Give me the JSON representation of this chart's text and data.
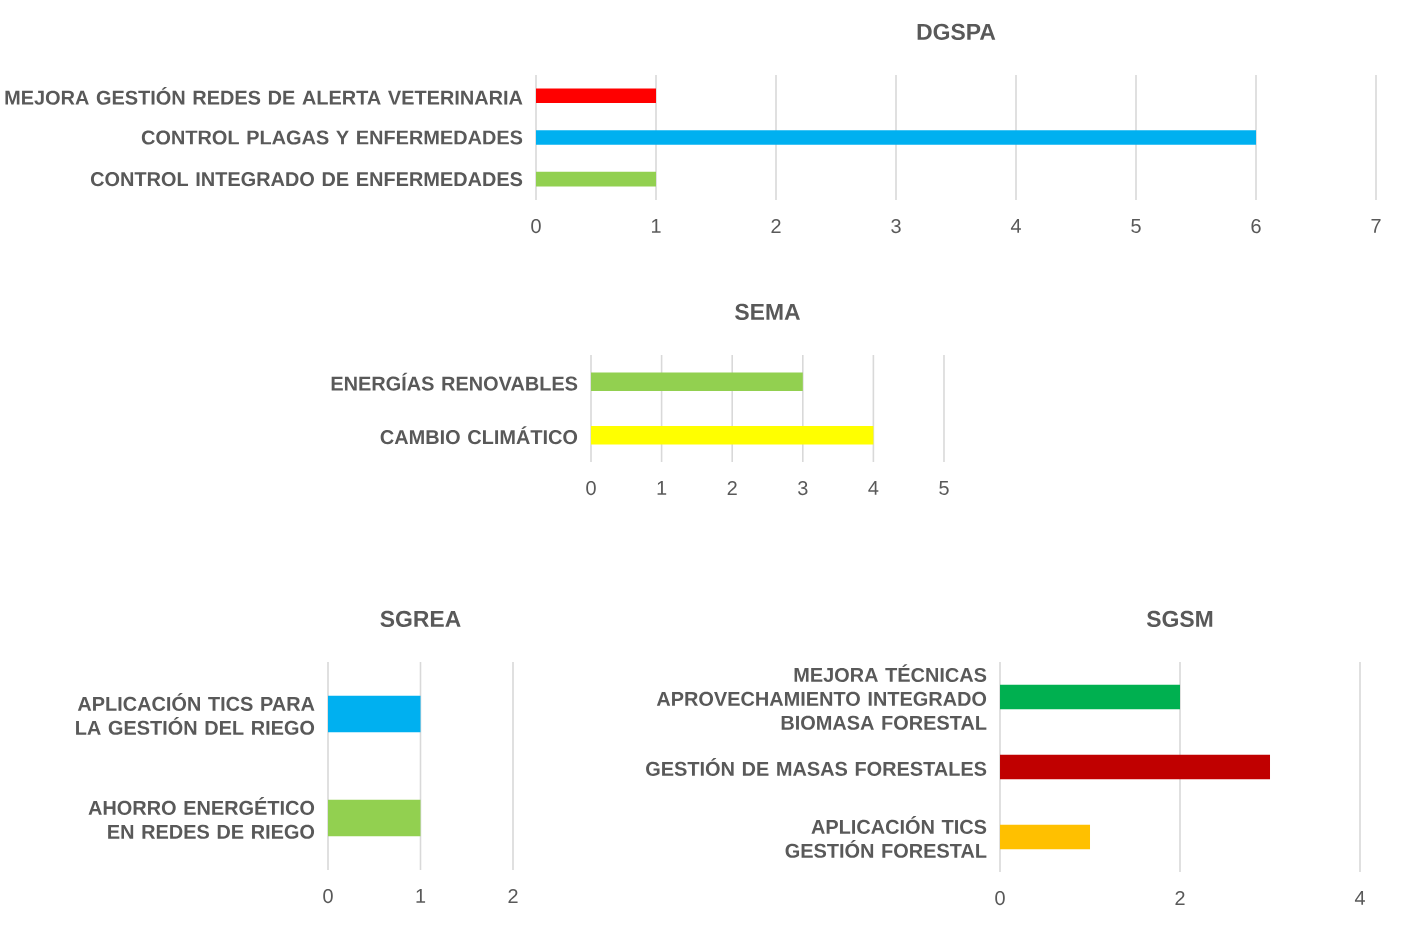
{
  "chart_data": [
    {
      "type": "bar",
      "orientation": "horizontal",
      "title": "DGSPA",
      "categories": [
        "MEJORA GESTIÓN REDES DE ALERTA VETERINARIA",
        "CONTROL PLAGAS Y ENFERMEDADES",
        "CONTROL INTEGRADO DE ENFERMEDADES"
      ],
      "values": [
        1,
        6,
        1
      ],
      "colors": [
        "#ff0000",
        "#00b0f0",
        "#92d050"
      ],
      "xlim": [
        0,
        7
      ],
      "xticks": [
        0,
        1,
        2,
        3,
        4,
        5,
        6,
        7
      ],
      "grid": "x"
    },
    {
      "type": "bar",
      "orientation": "horizontal",
      "title": "SEMA",
      "categories": [
        "ENERGÍAS RENOVABLES",
        "CAMBIO CLIMÁTICO"
      ],
      "values": [
        3,
        4
      ],
      "colors": [
        "#92d050",
        "#ffff00"
      ],
      "xlim": [
        0,
        5
      ],
      "xticks": [
        0,
        1,
        2,
        3,
        4,
        5
      ],
      "grid": "x"
    },
    {
      "type": "bar",
      "orientation": "horizontal",
      "title": "SGREA",
      "categories": [
        "APLICACIÓN TICS PARA LA GESTIÓN DEL RIEGO",
        "AHORRO ENERGÉTICO EN REDES DE RIEGO"
      ],
      "values": [
        1,
        1
      ],
      "colors": [
        "#00b0f0",
        "#92d050"
      ],
      "xlim": [
        0,
        2
      ],
      "xticks": [
        0,
        1,
        2
      ],
      "grid": "x"
    },
    {
      "type": "bar",
      "orientation": "horizontal",
      "title": "SGSM",
      "categories": [
        "MEJORA TÉCNICAS APROVECHAMIENTO INTEGRADO BIOMASA FORESTAL",
        "GESTIÓN DE MASAS FORESTALES",
        "APLICACIÓN TICS GESTIÓN FORESTAL"
      ],
      "values": [
        2,
        3,
        1
      ],
      "colors": [
        "#00b050",
        "#c00000",
        "#ffc000"
      ],
      "xlim": [
        0,
        4
      ],
      "xticks": [
        0,
        2,
        4
      ],
      "grid": "x"
    }
  ]
}
